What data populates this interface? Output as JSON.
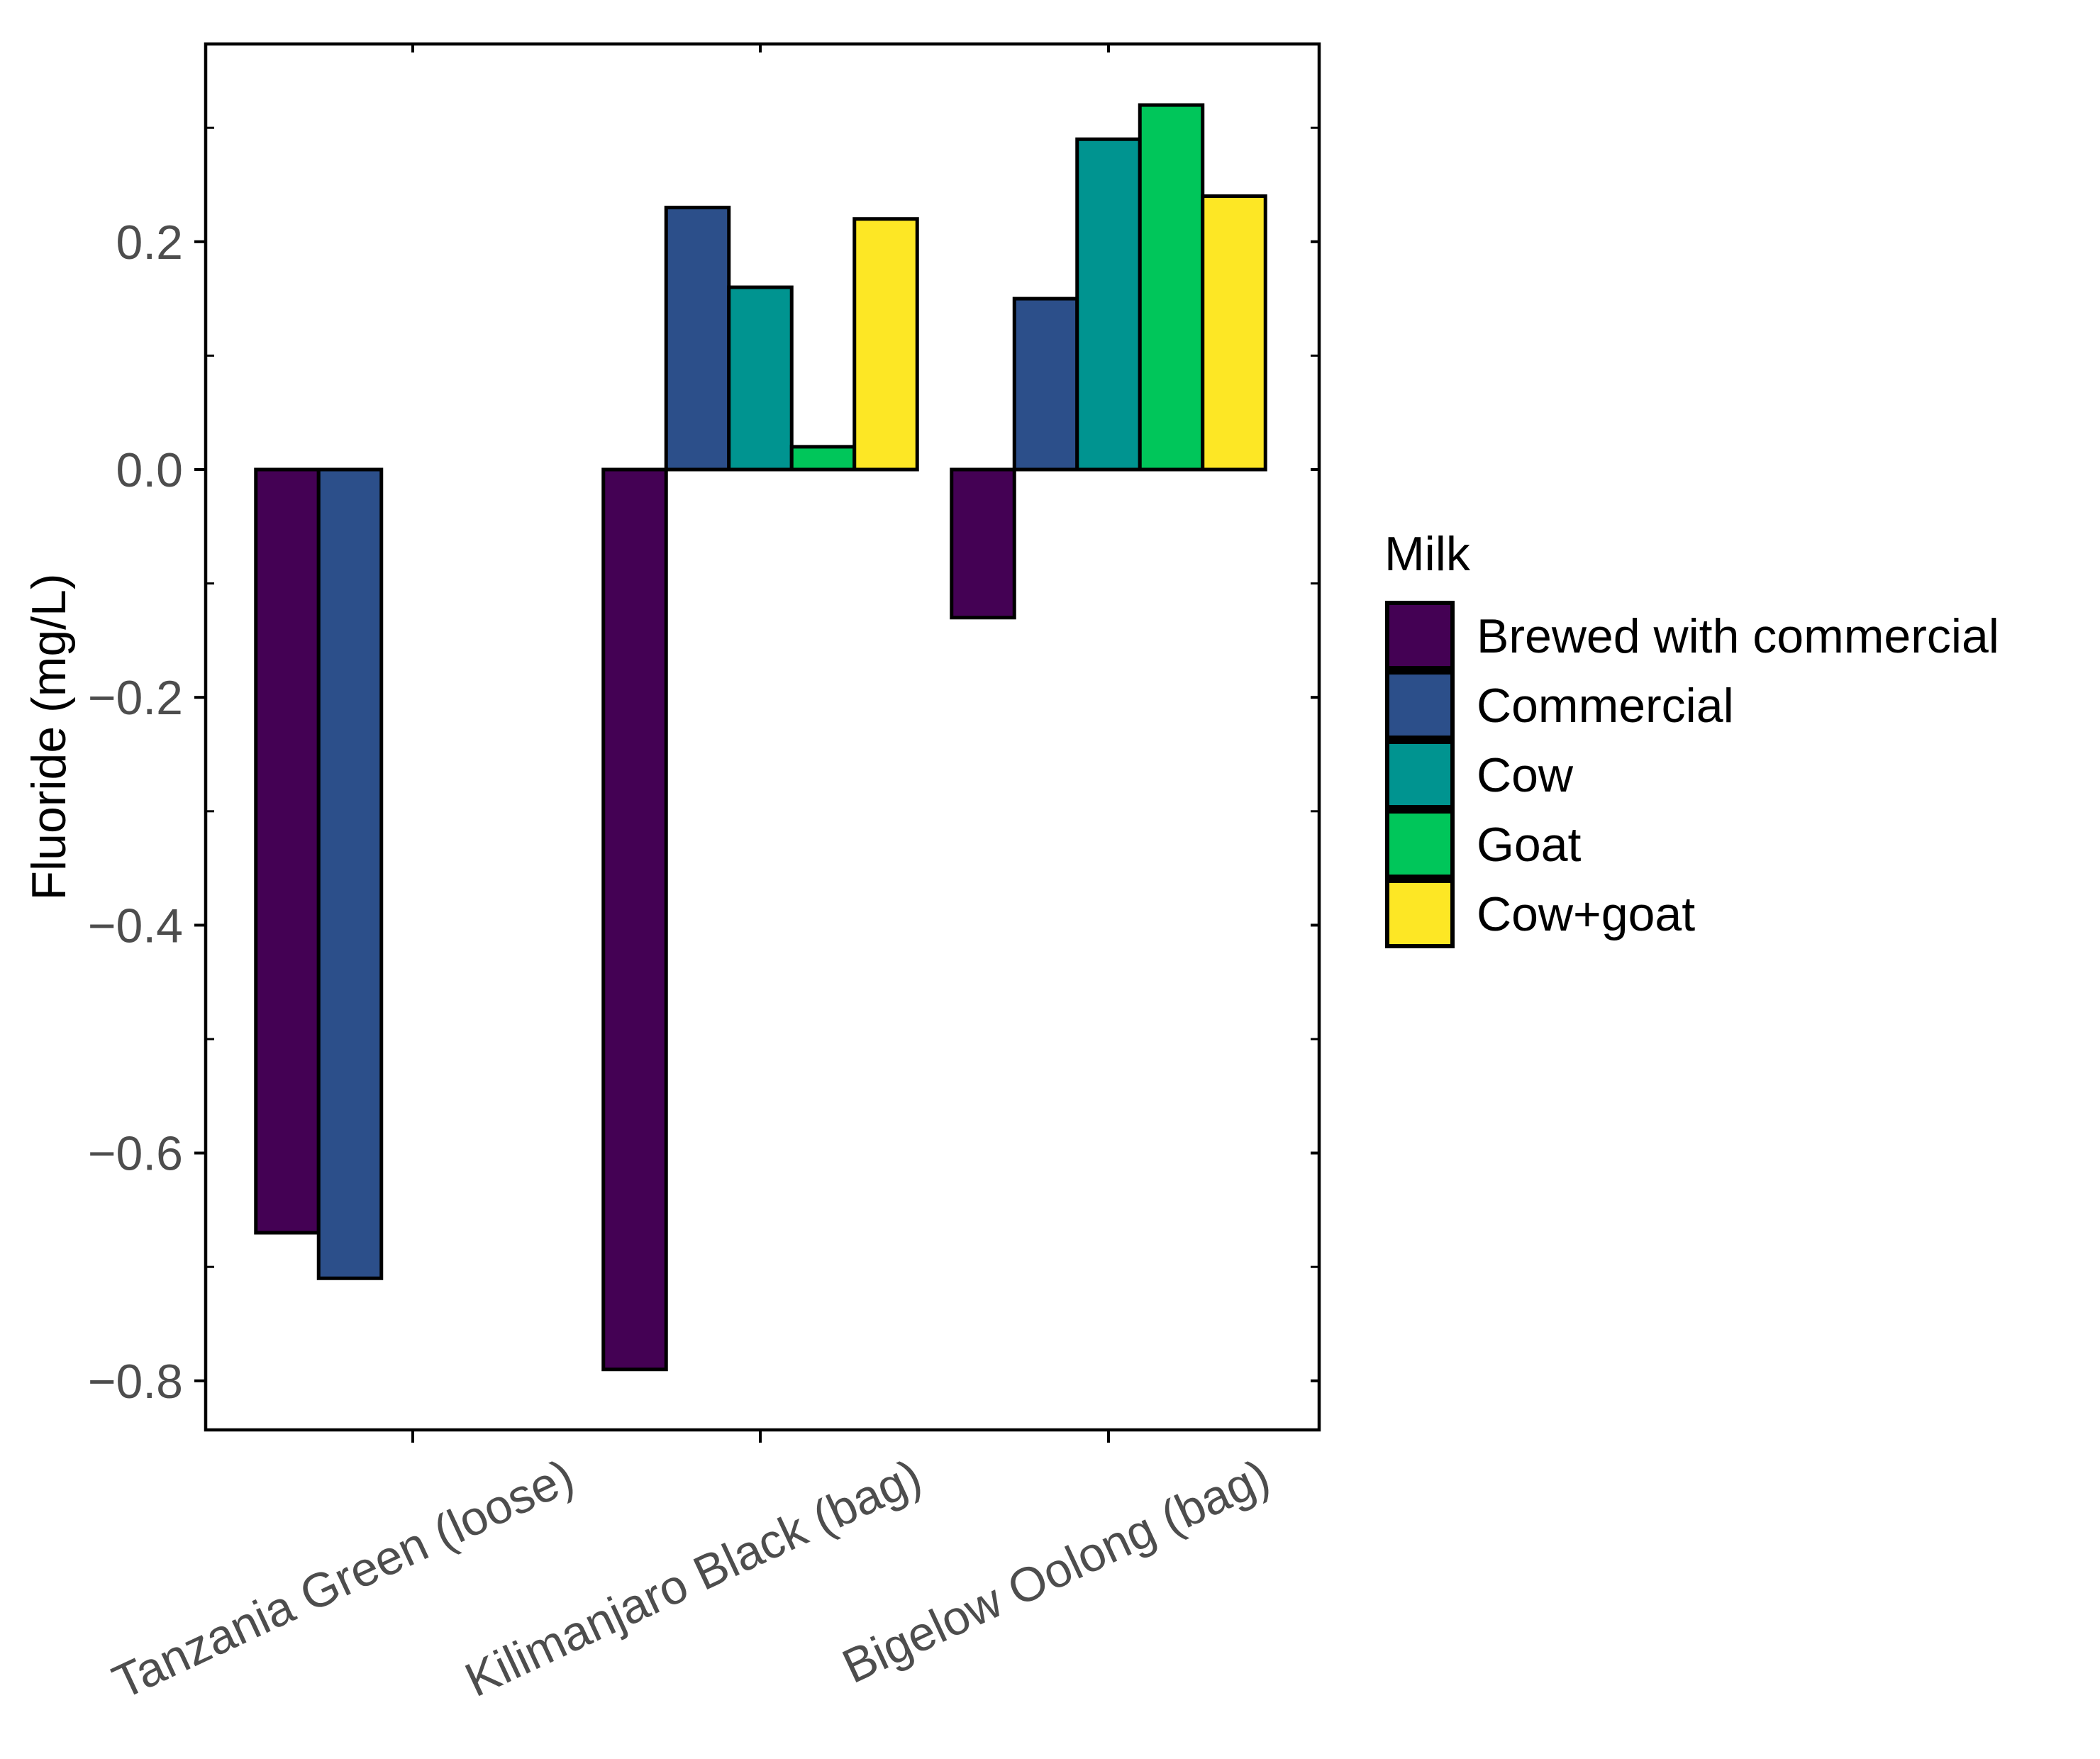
{
  "chart_data": {
    "type": "bar",
    "title": "",
    "xlabel": "",
    "ylabel": "Fluoride (mg/L)",
    "ylim": [
      -0.84,
      0.38
    ],
    "yticks": [
      -0.8,
      -0.6,
      -0.4,
      -0.2,
      0.0,
      0.2
    ],
    "ytick_labels": [
      "−0.8",
      "−0.6",
      "−0.4",
      "−0.2",
      "0.0",
      "0.2"
    ],
    "categories": [
      "Tanzania Green (loose)",
      "Kilimanjaro Black (bag)",
      "Bigelow Oolong (bag)"
    ],
    "legend": {
      "title": "Milk",
      "position": "right"
    },
    "series": [
      {
        "name": "Brewed with commercial",
        "color": "#440154",
        "values": [
          -0.67,
          -0.79,
          -0.13
        ]
      },
      {
        "name": "Commercial",
        "color": "#2c4f8a",
        "values": [
          -0.71,
          0.23,
          0.15
        ]
      },
      {
        "name": "Cow",
        "color": "#009490",
        "values": [
          0.0,
          0.16,
          0.29
        ]
      },
      {
        "name": "Goat",
        "color": "#00c65a",
        "values": [
          0.0,
          0.02,
          0.32
        ]
      },
      {
        "name": "Cow+goat",
        "color": "#fde725",
        "values": [
          0.0,
          0.22,
          0.24
        ]
      }
    ],
    "grid": false
  }
}
